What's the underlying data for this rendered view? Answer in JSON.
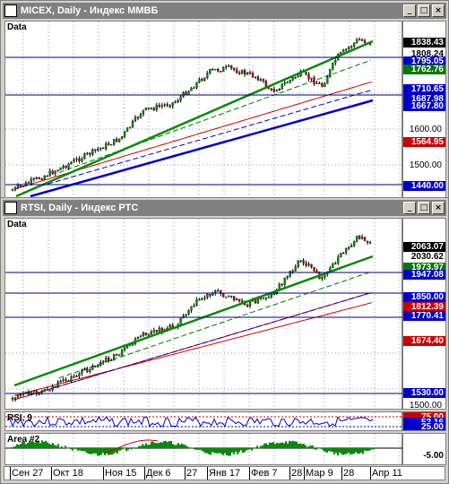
{
  "window1": {
    "title": "MICEX, Daily - Индекс ММВБ",
    "pane_label": "Data"
  },
  "window2": {
    "title": "RTSI, Daily - Индекс РТС",
    "pane_label": "Data"
  },
  "window_buttons": {
    "minimize": "_",
    "restore": "□",
    "close": "×"
  },
  "micex": {
    "ticks": [
      "1600.00",
      "1500.00"
    ],
    "tags": [
      {
        "value": "1838.43",
        "fg": "#ffffff",
        "bg": "#000000"
      },
      {
        "value": "1808.24",
        "fg": "#000000",
        "bg": "#ffffff"
      },
      {
        "value": "1795.05",
        "fg": "#ffffff",
        "bg": "#0000cc"
      },
      {
        "value": "1762.76",
        "fg": "#ffffff",
        "bg": "#007700"
      },
      {
        "value": "1710.65",
        "fg": "#ffffff",
        "bg": "#0000cc"
      },
      {
        "value": "1687.98",
        "fg": "#ffffff",
        "bg": "#0000cc"
      },
      {
        "value": "1667.80",
        "fg": "#ffffff",
        "bg": "#0000cc"
      },
      {
        "value": "1564.95",
        "fg": "#ffffff",
        "bg": "#cc0000"
      },
      {
        "value": "1440.00",
        "fg": "#ffffff",
        "bg": "#0000cc"
      }
    ]
  },
  "rtsi": {
    "ticks": [
      "1500.00"
    ],
    "tags": [
      {
        "value": "2063.07",
        "fg": "#ffffff",
        "bg": "#000000"
      },
      {
        "value": "2030.62",
        "fg": "#000000",
        "bg": "#ffffff"
      },
      {
        "value": "1973.97",
        "fg": "#ffffff",
        "bg": "#007700"
      },
      {
        "value": "1947.08",
        "fg": "#ffffff",
        "bg": "#0000cc"
      },
      {
        "value": "1850.00",
        "fg": "#ffffff",
        "bg": "#0000cc"
      },
      {
        "value": "1812.39",
        "fg": "#ffffff",
        "bg": "#cc0000"
      },
      {
        "value": "1770.41",
        "fg": "#ffffff",
        "bg": "#0000cc"
      },
      {
        "value": "1674.40",
        "fg": "#ffffff",
        "bg": "#cc0000"
      },
      {
        "value": "1530.00",
        "fg": "#ffffff",
        "bg": "#0000cc"
      }
    ]
  },
  "rsi": {
    "label": "RSI, 9",
    "tags": [
      {
        "value": "75.00",
        "fg": "#ffffff",
        "bg": "#cc0000"
      },
      {
        "value": "52.16",
        "fg": "#ffffff",
        "bg": "#0000cc"
      },
      {
        "value": "25.00",
        "fg": "#ffffff",
        "bg": "#0000cc"
      }
    ]
  },
  "area": {
    "label": "Area #2",
    "tags": [
      {
        "value": "-5.00",
        "fg": "#000000",
        "bg": "#ffffff"
      }
    ]
  },
  "xaxis": {
    "labels": [
      "Сен 27",
      "Окт 18",
      "Ноя 15",
      "Дек 6",
      "27",
      "Янв 17",
      "Фев 7",
      "28",
      "Мар 9",
      "28",
      "Апр 11"
    ]
  }
}
